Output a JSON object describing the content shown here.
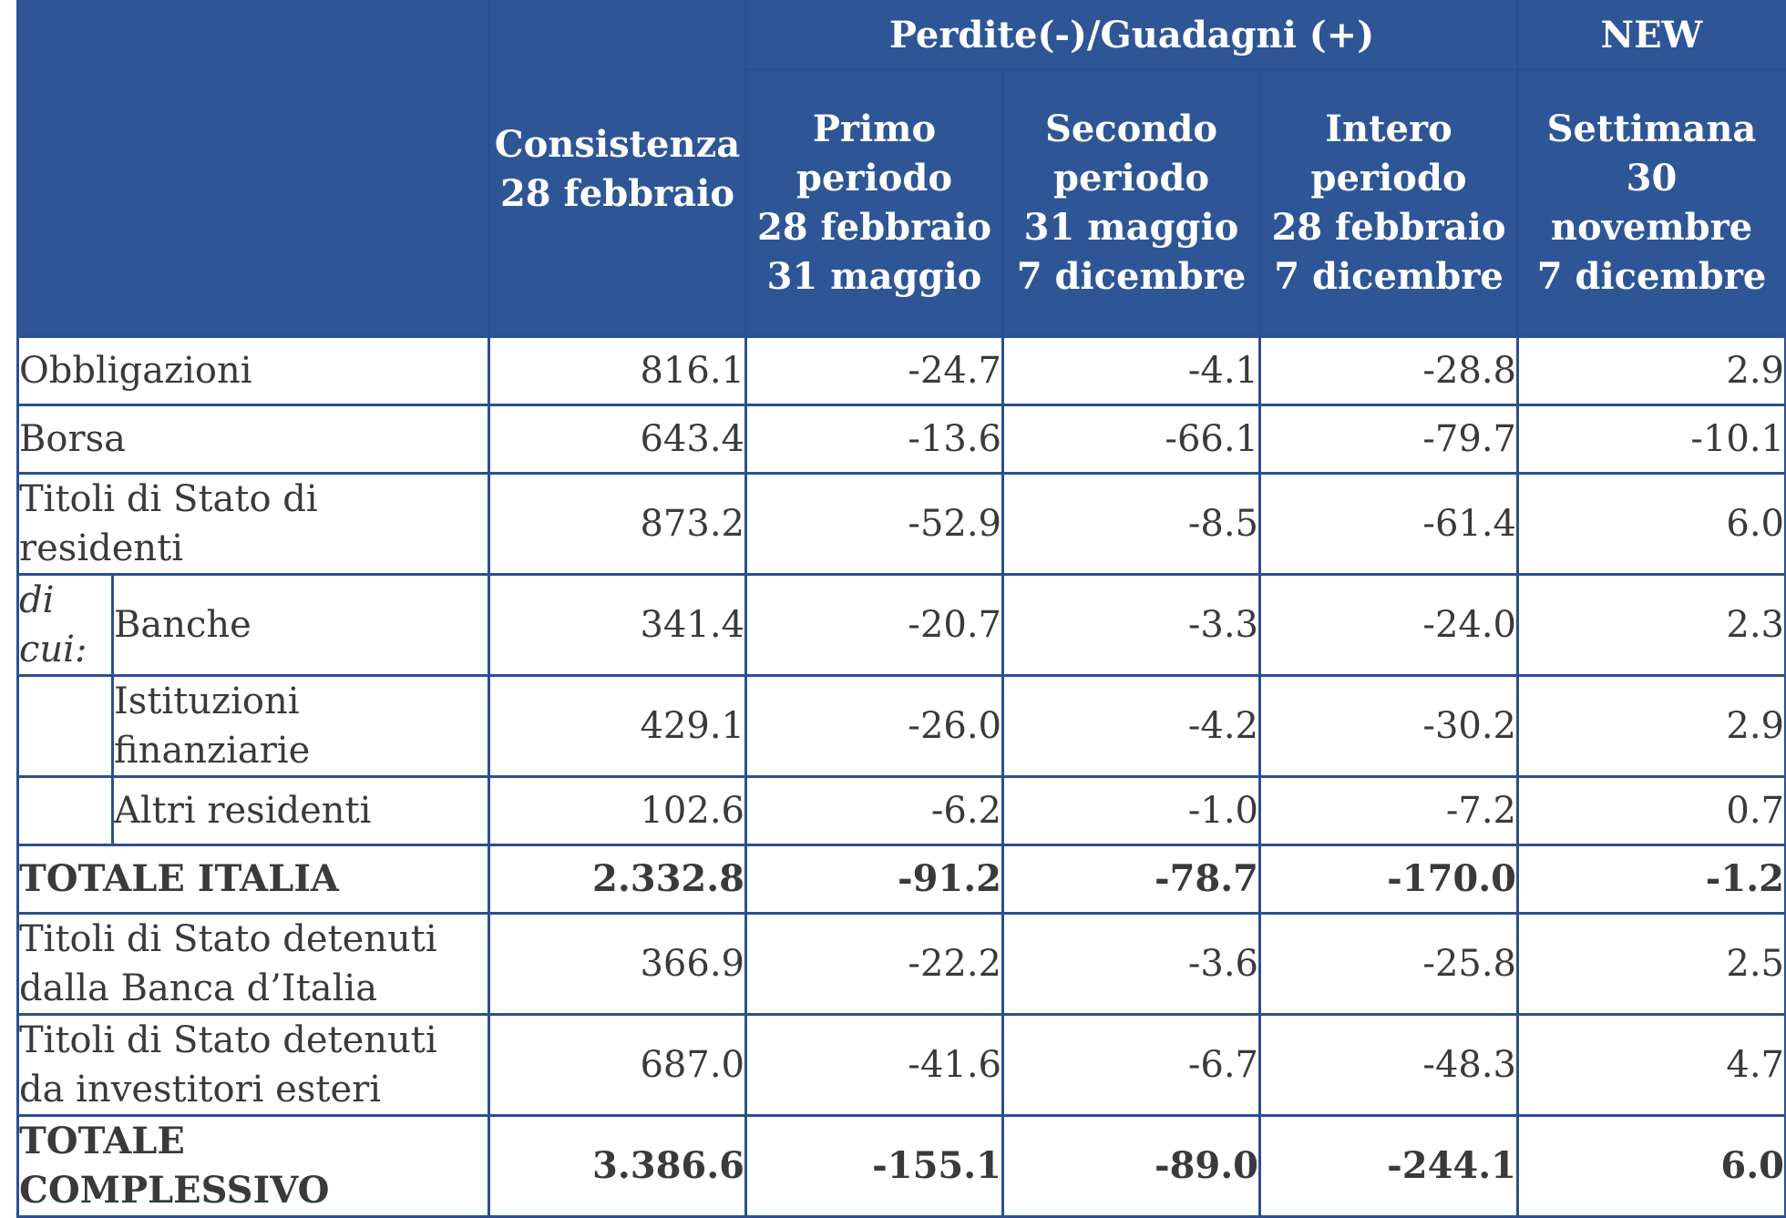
{
  "header": {
    "group_label": "Perdite(-)/Guadagni (+)",
    "new_label": "NEW",
    "col_consistenza": [
      "Consistenza",
      "28 febbraio"
    ],
    "col_primo": [
      "Primo",
      "periodo",
      "28 febbraio",
      "31 maggio"
    ],
    "col_secondo": [
      "Secondo",
      "periodo",
      "31 maggio",
      "7 dicembre"
    ],
    "col_intero": [
      "Intero",
      "periodo",
      "28 febbraio",
      "7 dicembre"
    ],
    "col_settimana": [
      "Settimana",
      "30",
      "novembre",
      "7 dicembre"
    ]
  },
  "rows": {
    "obbligazioni": {
      "label": "Obbligazioni",
      "values": [
        "816.1",
        "-24.7",
        "-4.1",
        "-28.8",
        "2.9"
      ]
    },
    "borsa": {
      "label": "Borsa",
      "values": [
        "643.4",
        "-13.6",
        "-66.1",
        "-79.7",
        "-10.1"
      ]
    },
    "titoli_residenti": {
      "label": [
        "Titoli di Stato di",
        "residenti"
      ],
      "values": [
        "873.2",
        "-52.9",
        "-8.5",
        "-61.4",
        "6.0"
      ]
    },
    "di_cui": [
      "di",
      "cui:"
    ],
    "banche": {
      "label": "Banche",
      "values": [
        "341.4",
        "-20.7",
        "-3.3",
        "-24.0",
        "2.3"
      ]
    },
    "istituzioni": {
      "label": "Istituzioni finanziarie",
      "values": [
        "429.1",
        "-26.0",
        "-4.2",
        "-30.2",
        "2.9"
      ]
    },
    "altri": {
      "label": "Altri residenti",
      "values": [
        "102.6",
        "-6.2",
        "-1.0",
        "-7.2",
        "0.7"
      ]
    },
    "totale_italia": {
      "label": "TOTALE ITALIA",
      "values": [
        "2.332.8",
        "-91.2",
        "-78.7",
        "-170.0",
        "-1.2"
      ]
    },
    "banca_italia": {
      "label": [
        "Titoli di Stato detenuti",
        "dalla Banca d’Italia"
      ],
      "values": [
        "366.9",
        "-22.2",
        "-3.6",
        "-25.8",
        "2.5"
      ]
    },
    "esteri": {
      "label": [
        "Titoli di Stato detenuti",
        "da investitori esteri"
      ],
      "values": [
        "687.0",
        "-41.6",
        "-6.7",
        "-48.3",
        "4.7"
      ]
    },
    "totale_complessivo": {
      "label": "TOTALE COMPLESSIVO",
      "values": [
        "3.386.6",
        "-155.1",
        "-89.0",
        "-244.1",
        "6.0"
      ]
    }
  }
}
